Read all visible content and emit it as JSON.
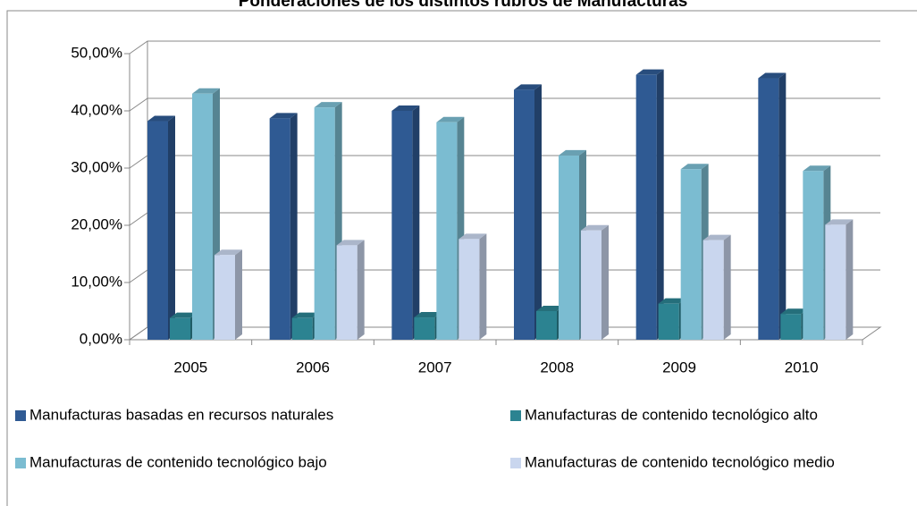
{
  "chart_data": {
    "type": "bar3d",
    "title": "Ponderaciones de los distintos rubros de Manufacturas",
    "categories": [
      "2005",
      "2006",
      "2007",
      "2008",
      "2009",
      "2010"
    ],
    "series": [
      {
        "name": "Manufacturas basadas en recursos naturales",
        "color": "#2f5a93",
        "values": [
          38.2,
          38.7,
          40.0,
          43.7,
          46.3,
          45.7
        ]
      },
      {
        "name": "Manufacturas de contenido tecnológico alto",
        "color": "#2c8391",
        "values": [
          3.8,
          3.8,
          3.9,
          5.0,
          6.3,
          4.5
        ]
      },
      {
        "name": "Manufacturas de contenido tecnológico bajo",
        "color": "#7bbcd1",
        "values": [
          43.0,
          40.6,
          38.0,
          32.2,
          29.8,
          29.5
        ]
      },
      {
        "name": "Manufacturas de contenido tecnológico medio",
        "color": "#c9d6ee",
        "values": [
          14.8,
          16.5,
          17.6,
          19.1,
          17.4,
          20.1
        ]
      }
    ],
    "ylim": [
      0,
      50
    ],
    "yticks": [
      {
        "value": 0,
        "label": "0,00%"
      },
      {
        "value": 10,
        "label": "10,00%"
      },
      {
        "value": 20,
        "label": "20,00%"
      },
      {
        "value": 30,
        "label": "30,00%"
      },
      {
        "value": 40,
        "label": "40,00%"
      },
      {
        "value": 50,
        "label": "50,00%"
      }
    ],
    "grid": true,
    "legend": "bottom"
  }
}
